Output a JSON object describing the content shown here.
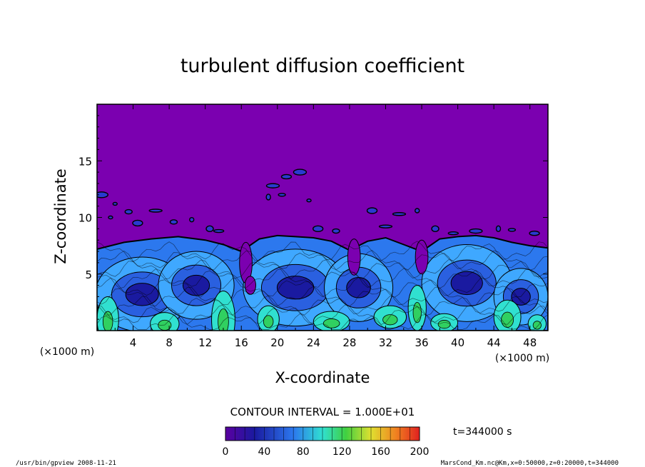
{
  "chart_data": {
    "type": "heatmap",
    "title": "turbulent diffusion coefficient",
    "xlabel": "X-coordinate",
    "ylabel": "Z-coordinate",
    "x_unit": "(×1000 m)",
    "y_unit": "(×1000 m)",
    "xlim": [
      0,
      50
    ],
    "ylim": [
      0,
      20
    ],
    "x_ticks": [
      4,
      8,
      12,
      16,
      20,
      24,
      28,
      32,
      36,
      40,
      44,
      48
    ],
    "y_ticks": [
      5,
      10,
      15
    ],
    "contour_interval": "CONTOUR INTERVAL = 1.000E+01",
    "colorbar": {
      "min": 0,
      "max": 200,
      "ticks": [
        0,
        40,
        80,
        120,
        160,
        200
      ]
    },
    "time_label": "t=344000 s",
    "colors": {
      "background": "#7b00b0",
      "low": "#1a1aa0",
      "mid": "#2c78ee",
      "light": "#3fa8ff",
      "cyan": "#30e0d0",
      "green": "#30d060",
      "contour": "#000000"
    }
  },
  "footer": {
    "left": "/usr/bin/gpview   2008-11-21",
    "right": "MarsCond_Km.nc@Km,x=0:50000,z=0:20000,t=344000"
  }
}
